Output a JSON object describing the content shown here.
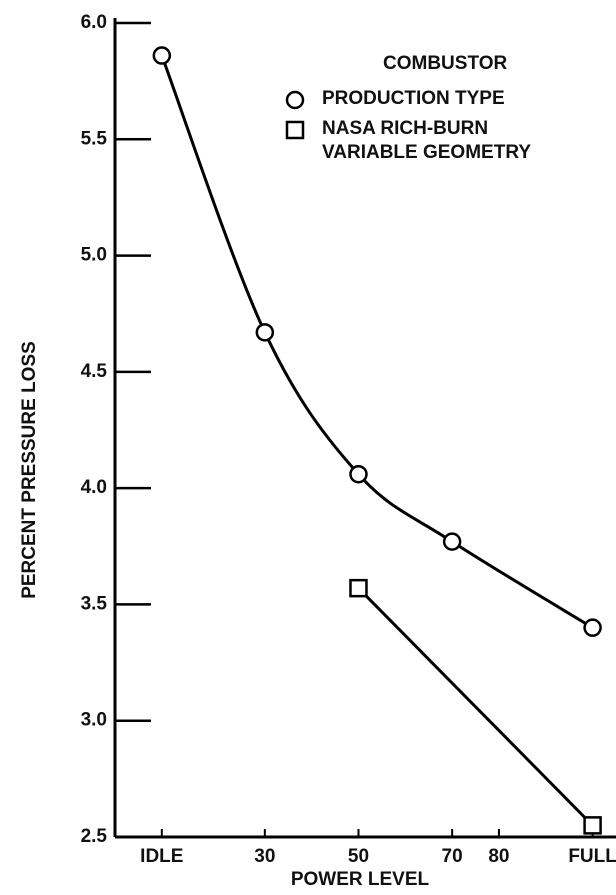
{
  "chart_data": {
    "type": "line",
    "y_label": "PERCENT PRESSURE LOSS",
    "x_label": "POWER LEVEL",
    "legend_title": "COMBUSTOR",
    "xlim": [
      -2,
      105
    ],
    "xticks": [
      {
        "value": 8,
        "label": "IDLE"
      },
      30,
      50,
      70,
      80,
      {
        "value": 100,
        "label": "FULL"
      }
    ],
    "ylim": [
      2.5,
      6.0
    ],
    "yticks": [
      {
        "value": 2.5,
        "label": "2.5"
      },
      {
        "value": 3,
        "label": "3.0"
      },
      3.5,
      {
        "value": 4,
        "label": "4.0"
      },
      4.5,
      {
        "value": 5,
        "label": "5.0"
      },
      5.5,
      {
        "value": 6,
        "label": "6.0"
      }
    ],
    "series": [
      {
        "name": "PRODUCTION TYPE",
        "marker": "circle",
        "color": "#000000",
        "x": [
          8,
          30,
          50,
          70,
          100
        ],
        "values": [
          5.86,
          4.67,
          4.06,
          3.77,
          3.4
        ]
      },
      {
        "name": "NASA RICH-BURN\nVARIABLE GEOMETRY",
        "marker": "square",
        "color": "#000000",
        "x": [
          50,
          100
        ],
        "values": [
          3.57,
          2.55
        ]
      }
    ]
  }
}
